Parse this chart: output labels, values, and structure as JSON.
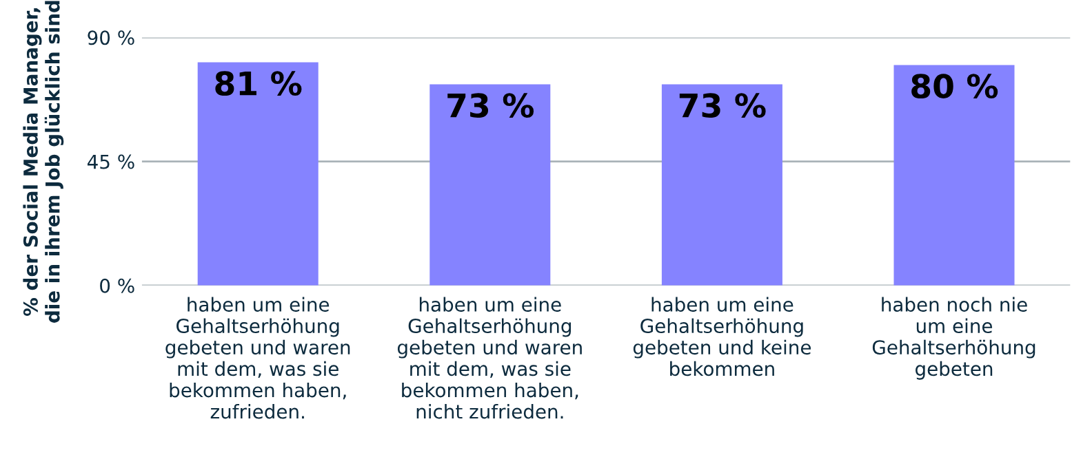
{
  "chart_data": {
    "type": "bar",
    "ylabel": "% der Social Media Manager,\ndie in ihrem Job glücklich sind",
    "categories": [
      "haben um eine\nGehaltserhöhung\ngebeten und waren\nmit dem, was sie\nbekommen haben,\nzufrieden.",
      "haben um eine\nGehaltserhöhung\ngebeten und waren\nmit dem, was sie\nbekommen haben,\nnicht zufrieden.",
      "haben um eine\nGehaltserhöhung\ngebeten und keine\nbekommen",
      "haben noch nie\num eine\nGehaltserhöhung\ngebeten"
    ],
    "values": [
      81,
      73,
      73,
      80
    ],
    "value_labels": [
      "81 %",
      "73 %",
      "73 %",
      "80 %"
    ],
    "color": "#8583ff",
    "ylim": [
      0,
      90
    ],
    "yticks": [
      {
        "value": 0,
        "label": "0 %"
      },
      {
        "value": 45,
        "label": "45 %"
      },
      {
        "value": 90,
        "label": "90 %"
      }
    ],
    "grid": "y"
  }
}
